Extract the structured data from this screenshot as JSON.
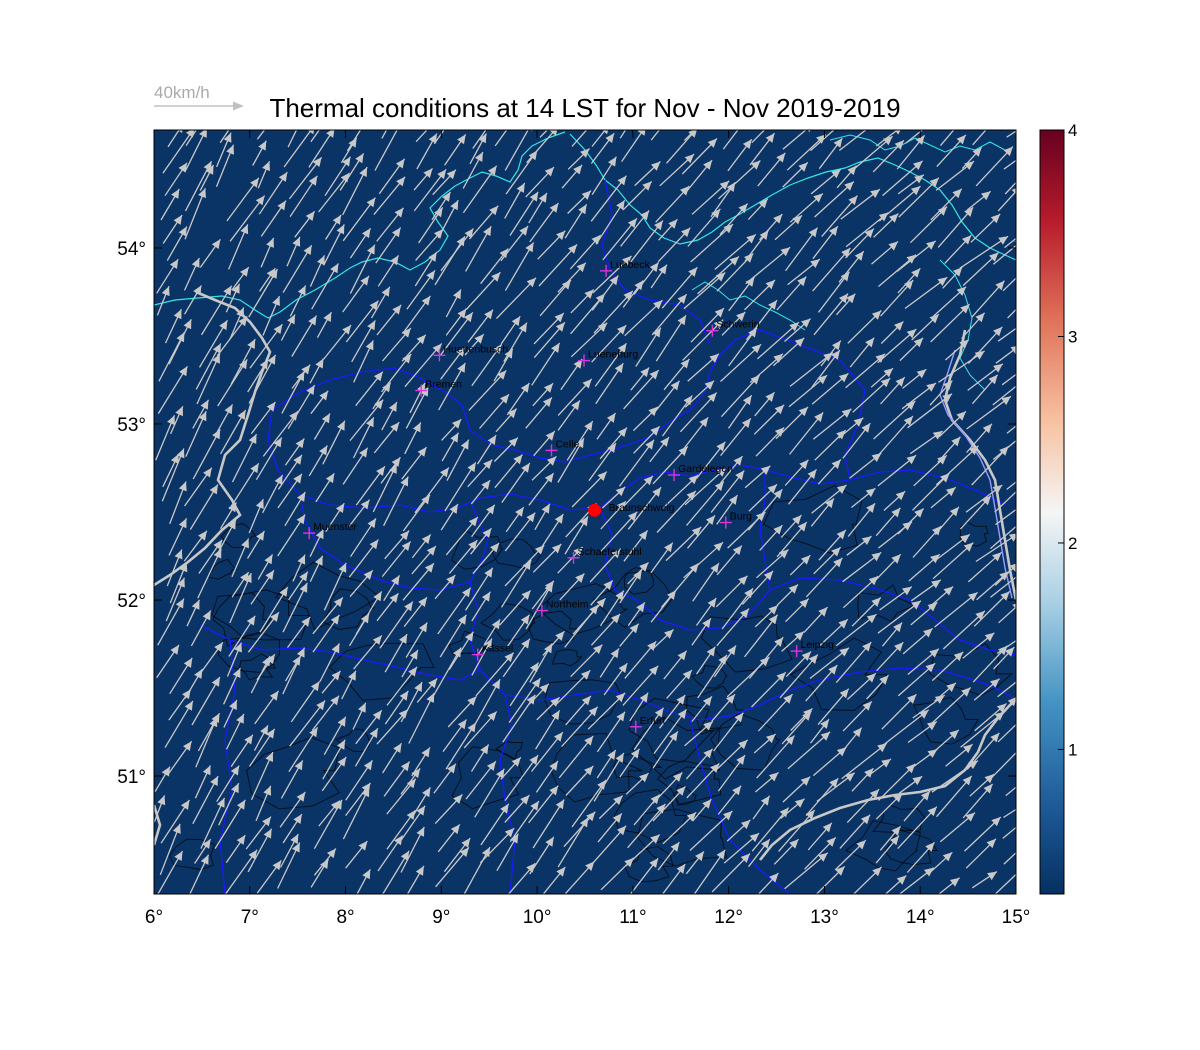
{
  "title": "Thermal conditions at 14 LST for Nov - Nov  2019-2019",
  "wind_reference_label": "40km/h",
  "map": {
    "lon_range": [
      6,
      15
    ],
    "lat_range": [
      50.33,
      54.67
    ],
    "lon_ticks": [
      6,
      7,
      8,
      9,
      10,
      11,
      12,
      13,
      14,
      15
    ],
    "lon_tick_labels": [
      "6°",
      "7°",
      "8°",
      "9°",
      "10°",
      "11°",
      "12°",
      "13°",
      "14°",
      "15°"
    ],
    "lat_ticks": [
      51,
      52,
      53,
      54
    ],
    "lat_tick_labels": [
      "51°",
      "52°",
      "53°",
      "54°"
    ],
    "background_color": "#0b3466",
    "arrow_color": "#c8c8c8",
    "coast_color": "#33e6e6",
    "border_color": "#1a1aff"
  },
  "cities": [
    {
      "name": "Luebeck",
      "lon": 10.72,
      "lat": 53.87
    },
    {
      "name": "Schwerin",
      "lon": 11.83,
      "lat": 53.53
    },
    {
      "name": "Huettenbusch",
      "lon": 8.98,
      "lat": 53.39
    },
    {
      "name": "Lueneburg",
      "lon": 10.49,
      "lat": 53.36
    },
    {
      "name": "Bremen",
      "lon": 8.79,
      "lat": 53.19
    },
    {
      "name": "Celle",
      "lon": 10.15,
      "lat": 52.85
    },
    {
      "name": "Gardelegen",
      "lon": 11.43,
      "lat": 52.71
    },
    {
      "name": "Braunschweig",
      "lon": 10.6,
      "lat": 52.51,
      "marker": "red-dot"
    },
    {
      "name": "Burg",
      "lon": 11.97,
      "lat": 52.44
    },
    {
      "name": "Muenster",
      "lon": 7.62,
      "lat": 52.38
    },
    {
      "name": "Schaeferstuhl",
      "lon": 10.38,
      "lat": 52.24
    },
    {
      "name": "Northeim",
      "lon": 10.05,
      "lat": 51.94
    },
    {
      "name": "Kassel",
      "lon": 9.38,
      "lat": 51.69
    },
    {
      "name": "Leipzig",
      "lon": 12.71,
      "lat": 51.71
    },
    {
      "name": "Erfurt",
      "lon": 11.03,
      "lat": 51.28
    }
  ],
  "colorbar": {
    "range": [
      0.3,
      4
    ],
    "ticks": [
      1,
      2,
      3,
      4
    ],
    "tick_labels": [
      "1",
      "2",
      "3",
      "4"
    ],
    "colors": [
      "#053061",
      "#2166ac",
      "#4393c3",
      "#92c5de",
      "#f7f7f7",
      "#f4a582",
      "#d6604d",
      "#b2182b",
      "#67001f"
    ]
  }
}
